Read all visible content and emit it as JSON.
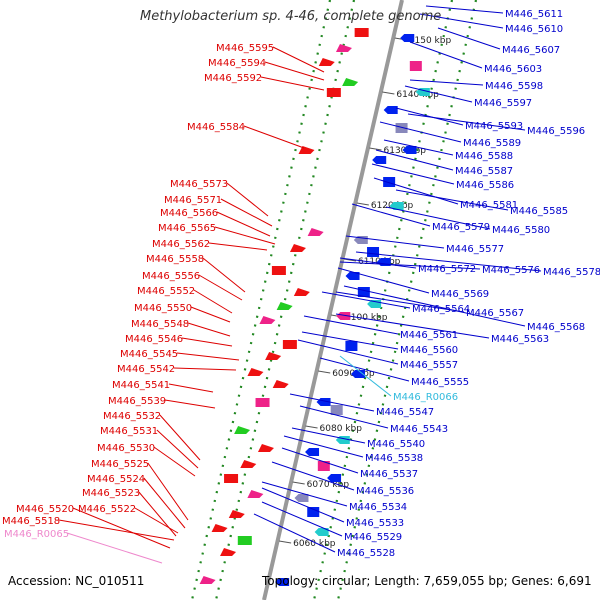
{
  "title": "Methylobacterium sp. 4-46, complete genome",
  "accession_text": "Accession: NC_010511",
  "topology_text": "Topology: circular; Length: 7,659,055 bp; Genes: 6,691",
  "colors": {
    "forward_label": "#dd0000",
    "reverse_label": "#0000cc",
    "rna_label": "#33bbdd",
    "pseudo_label": "#ee88cc",
    "backbone": "#999999",
    "tick": "#228822"
  },
  "tick_labels": [
    "6150 kbp",
    "6140 kbp",
    "6130 kbp",
    "6120 kbp",
    "6110 kbp",
    "6100 kbp",
    "6090 kbp",
    "6080 kbp",
    "6070 kbp",
    "6060 kbp"
  ],
  "left_labels": [
    "M446_5595",
    "M446_5594",
    "M446_5592",
    "M446_5584",
    "M446_5573",
    "M446_5571",
    "M446_5566",
    "M446_5565",
    "M446_5562",
    "M446_5558",
    "M446_5556",
    "M446_5552",
    "M446_5550",
    "M446_5548",
    "M446_5546",
    "M446_5545",
    "M446_5542",
    "M446_5541",
    "M446_5539",
    "M446_5532",
    "M446_5531",
    "M446_5530",
    "M446_5525",
    "M446_5524",
    "M446_5523",
    "M446_5520",
    "M446_5522",
    "M446_5518",
    "M446_R0065"
  ],
  "right_labels": [
    "M446_5611",
    "M446_5610",
    "M446_5607",
    "M446_5603",
    "M446_5598",
    "M446_5597",
    "M446_5593",
    "M446_5596",
    "M446_5589",
    "M446_5588",
    "M446_5587",
    "M446_5586",
    "M446_5581",
    "M446_5585",
    "M446_5579",
    "M446_5580",
    "M446_5577",
    "M446_5572",
    "M446_5576",
    "M446_5578",
    "M446_5569",
    "M446_5564",
    "M446_5567",
    "M446_5568",
    "M446_5561",
    "M446_5563",
    "M446_5560",
    "M446_5557",
    "M446_5555",
    "M446_R0066",
    "M446_5547",
    "M446_5543",
    "M446_5540",
    "M446_5538",
    "M446_5537",
    "M446_5536",
    "M446_5534",
    "M446_5533",
    "M446_5529",
    "M446_5528"
  ]
}
